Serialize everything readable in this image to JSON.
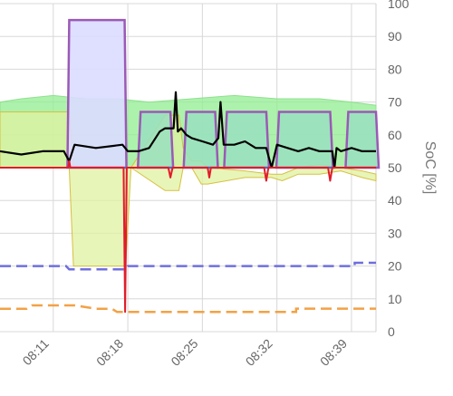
{
  "chart_data": {
    "type": "line",
    "title": "",
    "x_ticks": [
      "08:11",
      "08:18",
      "08:25",
      "08:32",
      "08:39"
    ],
    "x_range_min": [
      6.0,
      41.3
    ],
    "right_axis": {
      "label": "SoC [%]",
      "ylim": [
        0,
        100
      ],
      "ticks": [
        0,
        10,
        20,
        30,
        40,
        50,
        60,
        70,
        80,
        90,
        100
      ]
    },
    "grid": true,
    "legend": "none",
    "series": [
      {
        "kind": "band",
        "fill": "#90ee90",
        "stroke": "#8fe08f",
        "x": [
          6.0,
          8.0,
          11.0,
          14.0,
          17.0,
          20.0,
          24.0,
          28.0,
          32.0,
          36.0,
          39.0,
          41.3
        ],
        "upper": [
          70,
          71,
          72,
          71,
          71,
          70,
          71,
          72,
          71,
          71,
          70,
          69
        ],
        "lower": [
          50,
          50,
          50,
          50,
          50,
          50,
          50,
          50,
          50,
          50,
          50,
          50
        ]
      },
      {
        "kind": "band",
        "fill": "#e0f2a0",
        "stroke": "#d6c040",
        "x": [
          6.0,
          12.5,
          12.9,
          17.8,
          18.3,
          21.5,
          22.8,
          23.2,
          24.0,
          24.9,
          25.5,
          29.0,
          31.5,
          32.5,
          34.0,
          36.0,
          38.0,
          40.0,
          41.3
        ],
        "upper": [
          67,
          67,
          50,
          50,
          50,
          66,
          66,
          56,
          52,
          52,
          50,
          49,
          48,
          48,
          50,
          51,
          50,
          49,
          48
        ],
        "lower": [
          50,
          50,
          20,
          20,
          50,
          43,
          43,
          50,
          50,
          45,
          45,
          47,
          47,
          46,
          48,
          48,
          49,
          47,
          46
        ]
      },
      {
        "kind": "block",
        "fill": "#dcdcff",
        "stroke": "#9b59b6",
        "x0": 12.5,
        "x1": 17.7,
        "y0": 50,
        "y1": 95
      },
      {
        "kind": "cycle_blocks",
        "fill": "#99e0c0",
        "stroke": "#9b59b6",
        "blocks": [
          [
            19.2,
            22.0,
            67
          ],
          [
            23.5,
            26.2,
            67
          ],
          [
            27.3,
            31.0,
            67
          ],
          [
            32.2,
            37.0,
            67
          ],
          [
            38.7,
            41.3,
            67
          ]
        ]
      },
      {
        "kind": "line",
        "color": "#000000",
        "x": [
          6.0,
          8.0,
          10.0,
          12.0,
          12.5,
          13.0,
          15.0,
          17.5,
          18.0,
          19.0,
          20.0,
          21.0,
          21.5,
          22.3,
          22.5,
          22.7,
          23.0,
          23.5,
          24.0,
          25.0,
          26.0,
          26.5,
          26.7,
          27.0,
          28.0,
          29.0,
          30.0,
          31.0,
          31.5,
          32.0,
          33.0,
          34.0,
          35.0,
          36.0,
          37.2,
          37.4,
          37.6,
          38.0,
          39.0,
          40.0,
          41.3
        ],
        "y": [
          55,
          54,
          55,
          55,
          52,
          57,
          56,
          57,
          55,
          55,
          56,
          61,
          62,
          62,
          73,
          61,
          62,
          60,
          59,
          58,
          57,
          59,
          70,
          57,
          57,
          58,
          56,
          56,
          50,
          57,
          56,
          55,
          56,
          55,
          55,
          50,
          56,
          55,
          56,
          55,
          55
        ]
      },
      {
        "kind": "line",
        "color": "#4a6fd0",
        "width": 2,
        "x": [
          6.0,
          41.3
        ],
        "y": [
          50,
          50
        ]
      },
      {
        "kind": "line",
        "color": "#e11b2a",
        "width": 2,
        "x": [
          6.0,
          12.4,
          12.5,
          12.6,
          17.6,
          17.75,
          17.9,
          19.0,
          21.8,
          22.0,
          22.2,
          25.5,
          25.65,
          25.8,
          30.8,
          31.0,
          31.2,
          36.8,
          37.0,
          37.2,
          41.3
        ],
        "y": [
          50,
          50,
          52,
          50,
          50,
          6,
          50,
          50,
          50,
          47,
          50,
          50,
          47,
          50,
          50,
          46,
          50,
          50,
          46,
          50,
          50
        ]
      },
      {
        "kind": "dashed",
        "color": "#6f6fde",
        "x": [
          6.0,
          12.2,
          12.5,
          17.8,
          18.0,
          41.3
        ],
        "y": [
          20,
          20,
          19,
          19,
          20,
          20
        ],
        "step_up": [
          39.3,
          21
        ]
      },
      {
        "kind": "dashed",
        "color": "#f3a145",
        "x": [
          6.0,
          8.5,
          9.0,
          11.0,
          13.0,
          15.0,
          16.5,
          17.0,
          41.3
        ],
        "y": [
          7,
          7,
          8,
          8,
          8,
          7,
          7,
          6,
          6
        ],
        "step_up": [
          33.8,
          7
        ]
      }
    ]
  }
}
